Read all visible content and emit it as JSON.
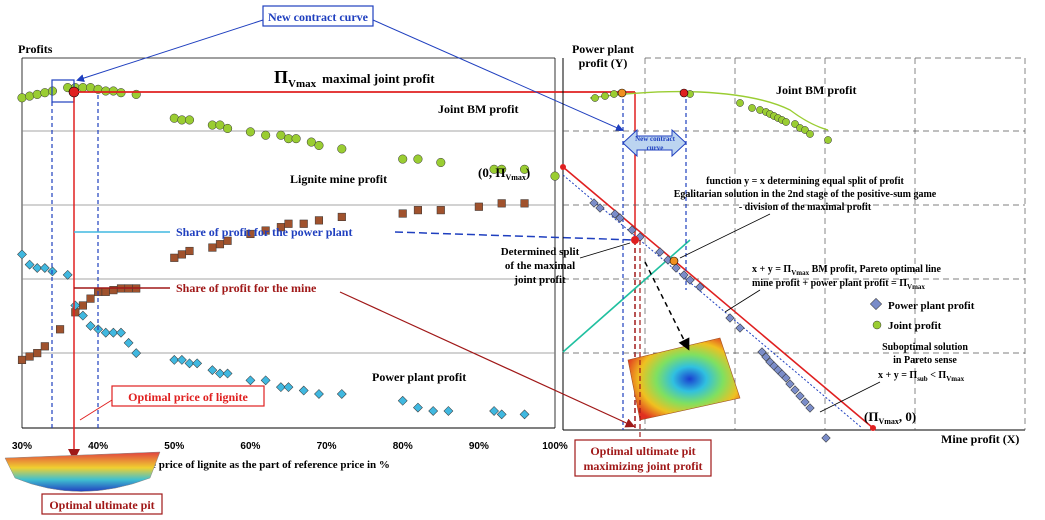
{
  "labels": {
    "profits": "Profits",
    "new_contract_curve": "New contract curve",
    "pi_max_symbol": "Π",
    "pi_max_sub": "Vmax",
    "pi_max_text": "maximal joint profit",
    "joint_bm_left": "Joint BM profit",
    "lignite_mine_profit": "Lignite mine profit",
    "share_power": "Share of profit for the power plant",
    "share_mine": "Share of profit for the mine",
    "power_plant_profit_left": "Power plant profit",
    "optimal_price": "Optimal price of lignite",
    "x_axis_title": "Base price of lignite as the part of reference price in  %",
    "optimal_pit": "Optimal ultimate pit",
    "optimal_pit_max_1": "Optimal ultimate pit",
    "optimal_pit_max_2": "maximizing joint profit",
    "right_y_1": "Power plant",
    "right_y_2": "profit (Y)",
    "right_x": "Mine profit (X)",
    "joint_bm_right": "Joint BM profit",
    "contract_arrow_1": "New contract",
    "contract_arrow_2": "curve",
    "zero_pi": "(0, Π",
    "zero_pi_sub": "Vmax",
    "zero_pi_close": ")",
    "pi_zero": "(Π",
    "pi_zero_sub": "Vmax",
    "pi_zero_close": ", 0)",
    "function_1": "function y = x determining equal split of profit",
    "function_2": "Egalitarian solution in the 2nd stage of the positive-sum game",
    "function_3": "- division of the maximal profit",
    "determined_1": "Determined split",
    "determined_2": "of the maximal",
    "determined_3": "joint profit",
    "pareto_1": "x + y = Π",
    "pareto_1_sub": "Vmax",
    "pareto_1_rest": " BM profit, Pareto optimal line",
    "pareto_2": "mine profit + power plant profit = Π",
    "pareto_2_sub": "Vmax",
    "legend_power": "Power plant profit",
    "legend_joint": "Joint profit",
    "subopt_1": "Suboptimal solution",
    "subopt_2": "in Pareto sense",
    "subopt_3a": "x + y = Π",
    "subopt_3b": "sub",
    "subopt_3c": " < Π",
    "subopt_3d": "Vmax"
  },
  "x_ticks": [
    "30%",
    "40%",
    "50%",
    "60%",
    "70%",
    "80%",
    "90%",
    "100%"
  ],
  "colors": {
    "red": "#e02020",
    "dark_red": "#a01818",
    "blue": "#1f3fbf",
    "joint": "#9acd32",
    "mine": "#a0522d",
    "power": "#40b8e0",
    "teal": "#20c0a0"
  },
  "chart_data": {
    "type": "scatter",
    "x_range": [
      30,
      100
    ],
    "series": [
      {
        "name": "Joint BM profit",
        "x": [
          30,
          31,
          32,
          33,
          34,
          36,
          37,
          38,
          39,
          40,
          41,
          42,
          43,
          45,
          50,
          51,
          52,
          55,
          56,
          57,
          60,
          62,
          64,
          65,
          66,
          68,
          69,
          72,
          80,
          82,
          85,
          92,
          93,
          96,
          100
        ],
        "y": [
          97,
          97.5,
          98,
          98.5,
          99,
          100,
          100,
          100,
          100,
          99.5,
          99,
          99,
          98.5,
          98,
          91,
          90.5,
          90.5,
          89,
          89,
          88,
          87,
          86,
          86,
          85,
          85,
          84,
          83,
          82,
          79,
          79,
          78,
          76,
          76,
          76,
          74
        ]
      },
      {
        "name": "Lignite mine profit",
        "x": [
          30,
          31,
          32,
          33,
          35,
          37,
          38,
          39,
          40,
          41,
          42,
          43,
          44,
          45,
          50,
          51,
          52,
          55,
          56,
          57,
          60,
          62,
          64,
          65,
          67,
          69,
          72,
          80,
          82,
          85,
          90,
          93,
          96
        ],
        "y": [
          20,
          21,
          22,
          24,
          29,
          34,
          36,
          38,
          40,
          40,
          40.5,
          41,
          41,
          41,
          50,
          51,
          52,
          53,
          54,
          55,
          57,
          58,
          59,
          60,
          60,
          61,
          62,
          63,
          64,
          64,
          65,
          66,
          66
        ]
      },
      {
        "name": "Power plant profit",
        "x": [
          30,
          31,
          32,
          33,
          34,
          36,
          37,
          38,
          39,
          40,
          41,
          42,
          43,
          44,
          45,
          50,
          51,
          52,
          53,
          55,
          56,
          57,
          60,
          62,
          64,
          65,
          67,
          69,
          72,
          80,
          82,
          84,
          86,
          92,
          93,
          96
        ],
        "y": [
          51,
          48,
          47,
          47,
          46,
          45,
          36,
          33,
          30,
          29,
          28,
          28,
          28,
          25,
          22,
          20,
          20,
          19,
          19,
          17,
          16,
          16,
          14,
          14,
          12,
          12,
          11,
          10,
          10,
          8,
          6,
          5,
          5,
          5,
          4,
          4
        ]
      }
    ]
  }
}
